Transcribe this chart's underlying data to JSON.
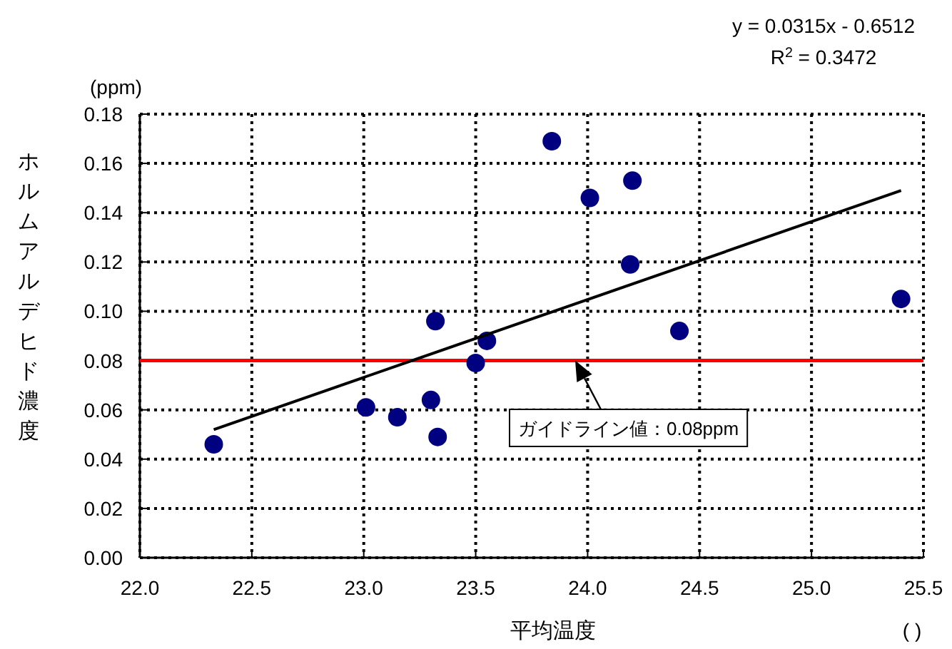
{
  "chart_data": {
    "type": "scatter",
    "xlabel": "平均温度",
    "ylabel": "ホルムアルデヒド濃度",
    "xlim": [
      22.0,
      25.5
    ],
    "ylim": [
      0,
      0.18
    ],
    "xticks": [
      {
        "value": 22.0,
        "label": "22.0"
      },
      {
        "value": 22.5,
        "label": "22.5"
      },
      {
        "value": 23.0,
        "label": "23.0"
      },
      {
        "value": 23.5,
        "label": "23.5"
      },
      {
        "value": 24.0,
        "label": "24.0"
      },
      {
        "value": 24.5,
        "label": "24.5"
      },
      {
        "value": 25.0,
        "label": "25.0"
      },
      {
        "value": 25.5,
        "label": "25.5"
      }
    ],
    "yticks": [
      {
        "value": 0,
        "label": "0.00"
      },
      {
        "value": 0.02,
        "label": "0.02"
      },
      {
        "value": 0.04,
        "label": "0.04"
      },
      {
        "value": 0.06,
        "label": "0.06"
      },
      {
        "value": 0.08,
        "label": "0.08"
      },
      {
        "value": 0.1,
        "label": "0.10"
      },
      {
        "value": 0.12,
        "label": "0.12"
      },
      {
        "value": 0.14,
        "label": "0.14"
      },
      {
        "value": 0.16,
        "label": "0.16"
      },
      {
        "value": 0.18,
        "label": "0.18"
      }
    ],
    "grid": true,
    "series": [
      {
        "marker": "circle",
        "color": "#000080",
        "x": [
          22.33,
          23.01,
          23.15,
          23.3,
          23.33,
          23.32,
          23.5,
          23.55,
          23.84,
          24.01,
          24.2,
          24.19,
          24.41,
          25.4
        ],
        "values": [
          0.046,
          0.061,
          0.057,
          0.064,
          0.049,
          0.096,
          0.079,
          0.088,
          0.169,
          0.146,
          0.153,
          0.119,
          0.092,
          0.105
        ]
      },
      {
        "type": "line",
        "color": "#000000",
        "line_style": "solid",
        "x": [
          22.33,
          25.4
        ],
        "values": [
          0.052,
          0.149
        ]
      }
    ],
    "ref_lines": [
      {
        "axis": "y",
        "value": 0.08,
        "color": "#ff0000"
      }
    ],
    "annotations": [
      "(ppm)",
      "y = 0.0315x - 0.6512",
      "R$^{2}$ = 0.3472",
      "(   )",
      "ガイドライン値：0.08ppm"
    ]
  }
}
